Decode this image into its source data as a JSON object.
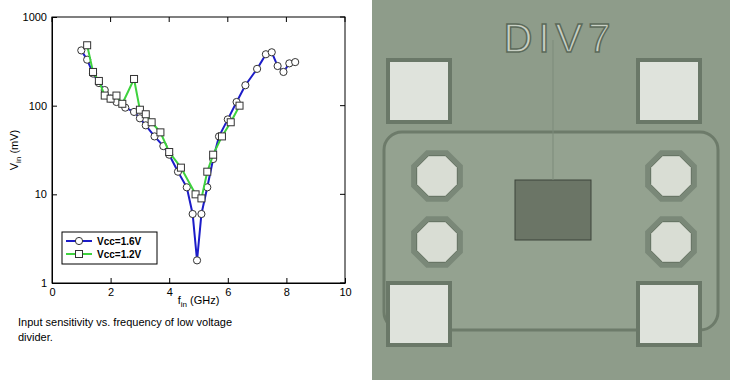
{
  "chart_data": {
    "type": "line",
    "xlabel": "fin (GHz)",
    "ylabel": "Vin (mV)",
    "caption": "Input sensitivity vs. frequency of low voltage divider.",
    "xlim": [
      0,
      10
    ],
    "xticks": [
      0,
      2,
      4,
      6,
      8,
      10
    ],
    "ylim": [
      1,
      1000
    ],
    "yticks": [
      1,
      10,
      100,
      1000
    ],
    "log": "y",
    "grid": false,
    "legend": "lower left",
    "series": [
      {
        "name": "Vcc=1.6V",
        "color": "#1c1cc8",
        "marker": "circle",
        "x": [
          1.0,
          1.2,
          1.4,
          1.6,
          1.8,
          2.0,
          2.2,
          2.5,
          2.8,
          3.0,
          3.2,
          3.5,
          3.8,
          4.0,
          4.3,
          4.6,
          4.8,
          4.95,
          5.1,
          5.3,
          5.5,
          5.7,
          6.0,
          6.3,
          6.6,
          7.0,
          7.3,
          7.5,
          7.7,
          7.9,
          8.1,
          8.3
        ],
        "values": [
          420,
          330,
          230,
          180,
          150,
          120,
          110,
          95,
          85,
          72,
          60,
          45,
          35,
          28,
          18,
          12,
          6,
          1.8,
          6,
          12,
          25,
          45,
          70,
          110,
          170,
          260,
          380,
          400,
          280,
          240,
          300,
          310
        ]
      },
      {
        "name": "Vcc=1.2V",
        "color": "#3ed23e",
        "marker": "square",
        "x": [
          1.2,
          1.4,
          1.6,
          1.8,
          2.0,
          2.2,
          2.4,
          2.8,
          3.0,
          3.2,
          3.4,
          3.7,
          4.0,
          4.4,
          4.9,
          5.1,
          5.3,
          5.5,
          5.8,
          6.1,
          6.4
        ],
        "values": [
          480,
          240,
          190,
          130,
          120,
          130,
          105,
          200,
          90,
          80,
          65,
          50,
          30,
          20,
          10,
          9,
          18,
          28,
          45,
          65,
          100
        ]
      }
    ]
  },
  "chip_photo": {
    "label": "DIV7"
  }
}
